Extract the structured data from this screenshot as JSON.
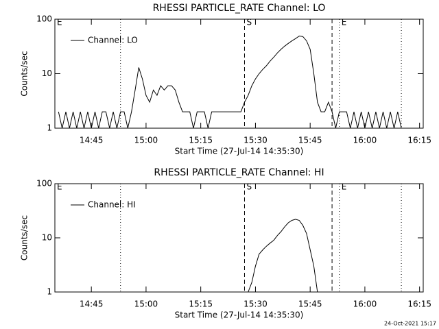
{
  "chart_data": [
    {
      "type": "line",
      "title": "RHESSI PARTICLE_RATE Channel: LO",
      "xlabel": "Start Time (27-Jul-14 14:35:30)",
      "ylabel": "Counts/sec",
      "log_y": true,
      "ylim": [
        1,
        100
      ],
      "yticks": [
        1,
        10,
        100
      ],
      "xlim": [
        "14:35",
        "16:16"
      ],
      "xticks": [
        "14:45",
        "15:00",
        "15:15",
        "15:30",
        "15:45",
        "16:00",
        "16:15"
      ],
      "legend": "top-left",
      "annotations": [
        {
          "x": "14:35",
          "label": "E",
          "style": "none"
        },
        {
          "x": "14:53",
          "style": "dotted"
        },
        {
          "x": "15:27",
          "label": "S",
          "style": "dashed"
        },
        {
          "x": "15:51",
          "style": "dashed"
        },
        {
          "x": "15:53",
          "label": "E",
          "style": "dotted"
        },
        {
          "x": "16:10",
          "style": "dotted"
        }
      ],
      "x": [
        "14:36",
        "14:37",
        "14:38",
        "14:39",
        "14:40",
        "14:41",
        "14:42",
        "14:43",
        "14:44",
        "14:45",
        "14:46",
        "14:47",
        "14:48",
        "14:49",
        "14:50",
        "14:51",
        "14:52",
        "14:53",
        "14:54",
        "14:55",
        "14:56",
        "14:57",
        "14:58",
        "14:59",
        "15:00",
        "15:01",
        "15:02",
        "15:03",
        "15:04",
        "15:05",
        "15:06",
        "15:07",
        "15:08",
        "15:09",
        "15:10",
        "15:11",
        "15:12",
        "15:13",
        "15:14",
        "15:15",
        "15:16",
        "15:17",
        "15:18",
        "15:19",
        "15:20",
        "15:21",
        "15:22",
        "15:23",
        "15:24",
        "15:25",
        "15:26",
        "15:27",
        "15:28",
        "15:29",
        "15:30",
        "15:31",
        "15:32",
        "15:33",
        "15:34",
        "15:35",
        "15:36",
        "15:37",
        "15:38",
        "15:39",
        "15:40",
        "15:41",
        "15:42",
        "15:43",
        "15:44",
        "15:45",
        "15:46",
        "15:47",
        "15:48",
        "15:49",
        "15:50",
        "15:51",
        "15:52",
        "15:53",
        "15:54",
        "15:55",
        "15:56",
        "15:57",
        "15:58",
        "15:59",
        "16:00",
        "16:01",
        "16:02",
        "16:03",
        "16:04",
        "16:05",
        "16:06",
        "16:07",
        "16:08",
        "16:09",
        "16:10"
      ],
      "series": [
        {
          "name": "Channel: LO",
          "color": "#000000",
          "values": [
            2,
            1,
            2,
            1,
            2,
            1,
            2,
            1,
            2,
            1,
            2,
            1,
            2,
            2,
            1,
            2,
            1,
            2,
            2,
            1,
            2,
            5,
            13,
            8,
            4,
            3,
            5,
            4,
            6,
            5,
            6,
            6,
            5,
            3,
            2,
            2,
            2,
            1,
            2,
            2,
            2,
            1,
            2,
            2,
            2,
            2,
            2,
            2,
            2,
            2,
            2,
            3,
            4,
            6,
            8,
            10,
            12,
            14,
            17,
            20,
            24,
            28,
            32,
            36,
            40,
            44,
            49,
            48,
            40,
            28,
            10,
            3,
            2,
            2,
            3,
            2,
            1,
            2,
            2,
            2,
            1,
            2,
            1,
            2,
            1,
            2,
            1,
            2,
            1,
            2,
            1,
            2,
            1,
            2,
            1
          ]
        }
      ]
    },
    {
      "type": "line",
      "title": "RHESSI PARTICLE_RATE Channel: HI",
      "xlabel": "Start Time (27-Jul-14 14:35:30)",
      "ylabel": "Counts/sec",
      "log_y": true,
      "ylim": [
        1,
        100
      ],
      "yticks": [
        1,
        10,
        100
      ],
      "xlim": [
        "14:35",
        "16:16"
      ],
      "xticks": [
        "14:45",
        "15:00",
        "15:15",
        "15:30",
        "15:45",
        "16:00",
        "16:15"
      ],
      "legend": "top-left",
      "annotations": [
        {
          "x": "14:35",
          "label": "E",
          "style": "none"
        },
        {
          "x": "14:53",
          "style": "dotted"
        },
        {
          "x": "15:27",
          "label": "S",
          "style": "dashed"
        },
        {
          "x": "15:51",
          "style": "dashed"
        },
        {
          "x": "15:53",
          "label": "E",
          "style": "dotted"
        },
        {
          "x": "16:10",
          "style": "dotted"
        }
      ],
      "x": [
        "15:28",
        "15:29",
        "15:30",
        "15:31",
        "15:32",
        "15:33",
        "15:34",
        "15:35",
        "15:36",
        "15:37",
        "15:38",
        "15:39",
        "15:40",
        "15:41",
        "15:42",
        "15:43",
        "15:44",
        "15:45",
        "15:46",
        "15:47"
      ],
      "series": [
        {
          "name": "Channel: HI",
          "color": "#000000",
          "values": [
            1,
            1.5,
            3,
            5,
            6,
            7,
            8,
            9,
            11,
            13,
            16,
            19,
            21,
            22,
            21,
            17,
            12,
            6,
            3,
            1
          ]
        }
      ]
    }
  ],
  "footer": "24-Oct-2021 15:17"
}
